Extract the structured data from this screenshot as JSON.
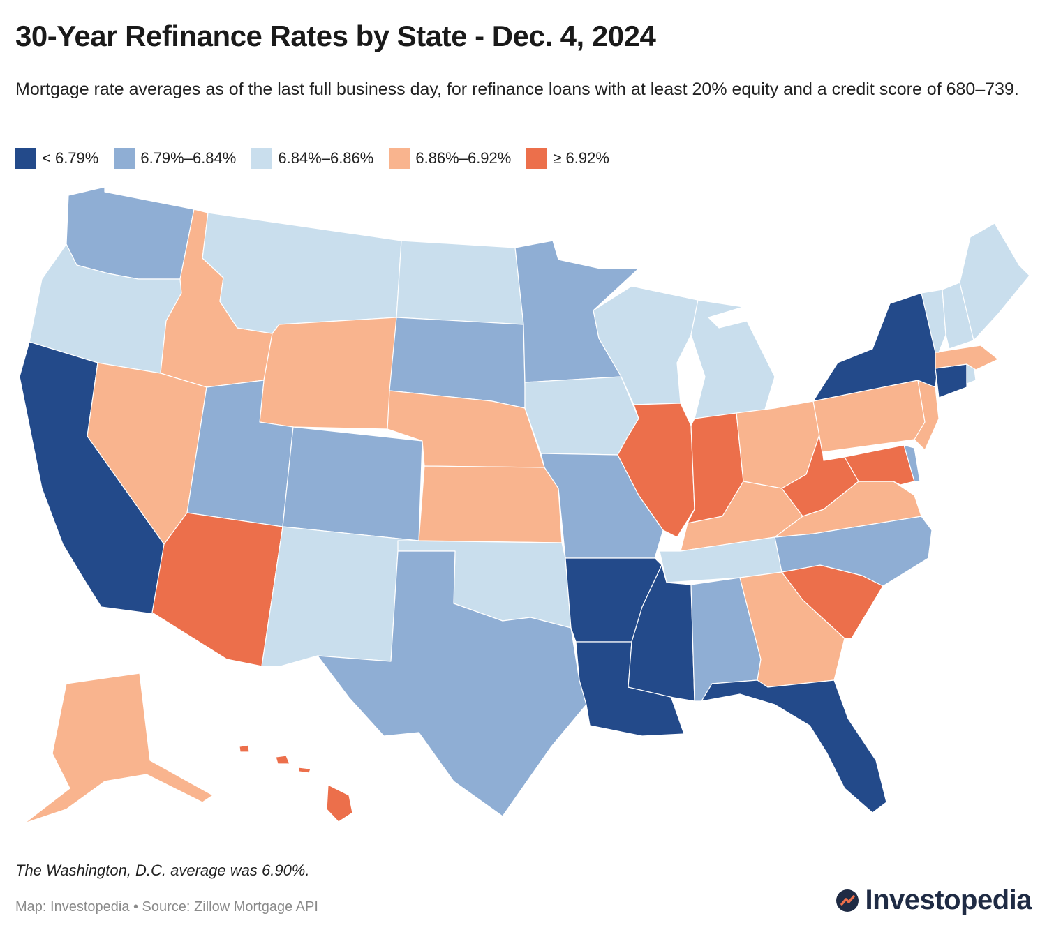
{
  "title": "30-Year Refinance Rates by State - Dec. 4, 2024",
  "subtitle": "Mortgage rate averages as of the last full business day, for refinance loans with at least 20% equity and a credit score of 680–739.",
  "legend": [
    {
      "label": "< 6.79%",
      "color": "#234a8a"
    },
    {
      "label": "6.79%–6.84%",
      "color": "#8faed4"
    },
    {
      "label": "6.84%–6.86%",
      "color": "#c9deed"
    },
    {
      "label": "6.86%–6.92%",
      "color": "#f9b48e"
    },
    {
      "label": "≥ 6.92%",
      "color": "#ec6f4b"
    }
  ],
  "states": [
    {
      "code": "WA",
      "bin": 1
    },
    {
      "code": "OR",
      "bin": 2
    },
    {
      "code": "CA",
      "bin": 0
    },
    {
      "code": "ID",
      "bin": 3
    },
    {
      "code": "NV",
      "bin": 3
    },
    {
      "code": "MT",
      "bin": 2
    },
    {
      "code": "WY",
      "bin": 3
    },
    {
      "code": "UT",
      "bin": 1
    },
    {
      "code": "AZ",
      "bin": 4
    },
    {
      "code": "CO",
      "bin": 1
    },
    {
      "code": "NM",
      "bin": 2
    },
    {
      "code": "ND",
      "bin": 2
    },
    {
      "code": "SD",
      "bin": 1
    },
    {
      "code": "NE",
      "bin": 3
    },
    {
      "code": "KS",
      "bin": 3
    },
    {
      "code": "OK",
      "bin": 2
    },
    {
      "code": "TX",
      "bin": 1
    },
    {
      "code": "MN",
      "bin": 1
    },
    {
      "code": "IA",
      "bin": 2
    },
    {
      "code": "MO",
      "bin": 1
    },
    {
      "code": "AR",
      "bin": 0
    },
    {
      "code": "LA",
      "bin": 0
    },
    {
      "code": "WI",
      "bin": 2
    },
    {
      "code": "IL",
      "bin": 4
    },
    {
      "code": "MI",
      "bin": 2
    },
    {
      "code": "IN",
      "bin": 4
    },
    {
      "code": "OH",
      "bin": 3
    },
    {
      "code": "KY",
      "bin": 3
    },
    {
      "code": "TN",
      "bin": 2
    },
    {
      "code": "MS",
      "bin": 0
    },
    {
      "code": "AL",
      "bin": 1
    },
    {
      "code": "GA",
      "bin": 3
    },
    {
      "code": "FL",
      "bin": 0
    },
    {
      "code": "SC",
      "bin": 4
    },
    {
      "code": "NC",
      "bin": 1
    },
    {
      "code": "VA",
      "bin": 3
    },
    {
      "code": "WV",
      "bin": 4
    },
    {
      "code": "PA",
      "bin": 3
    },
    {
      "code": "NY",
      "bin": 0
    },
    {
      "code": "VT",
      "bin": 2
    },
    {
      "code": "NH",
      "bin": 2
    },
    {
      "code": "ME",
      "bin": 2
    },
    {
      "code": "MA",
      "bin": 3
    },
    {
      "code": "RI",
      "bin": 2
    },
    {
      "code": "CT",
      "bin": 0
    },
    {
      "code": "NJ",
      "bin": 3
    },
    {
      "code": "DE",
      "bin": 1
    },
    {
      "code": "MD",
      "bin": 4
    },
    {
      "code": "AK",
      "bin": 3
    },
    {
      "code": "HI",
      "bin": 4
    }
  ],
  "note": "The Washington, D.C. average was 6.90%.",
  "source": "Map: Investopedia • Source: Zillow Mortgage API",
  "brand": "Investopedia"
}
